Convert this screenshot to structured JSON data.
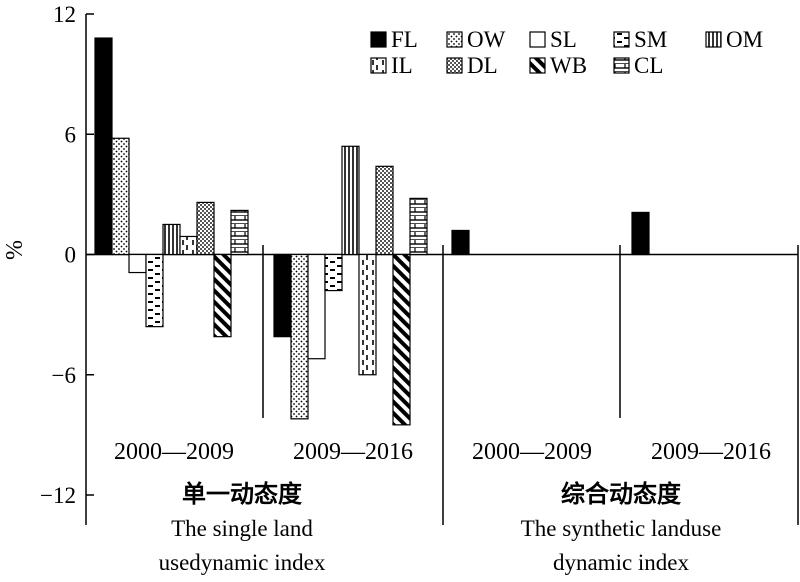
{
  "chart_data": {
    "type": "bar",
    "xlabel": "",
    "ylabel": "%",
    "ylim": [
      -12,
      12
    ],
    "yticks": [
      12,
      6,
      0,
      -6,
      -12
    ],
    "grid": false,
    "legend_position": "top-right",
    "groups": [
      {
        "label": "2000—2009",
        "values": {
          "FL": 10.8,
          "OW": 5.8,
          "SL": -0.9,
          "SM": -3.6,
          "OM": 1.5,
          "IL": 0.9,
          "DL": 2.6,
          "WB": -4.1,
          "CL": 2.2
        }
      },
      {
        "label": "2009—2016",
        "values": {
          "FL": -4.1,
          "OW": -8.2,
          "SL": -5.2,
          "SM": -1.8,
          "OM": 5.4,
          "IL": -6.0,
          "DL": 4.4,
          "WB": -8.5,
          "CL": 2.8
        }
      },
      {
        "label": "2000—2009",
        "values": {
          "FL": 1.2
        }
      },
      {
        "label": "2009—2016",
        "values": {
          "FL": 2.1
        }
      }
    ],
    "sections": [
      {
        "title_cn": "单一动态度",
        "title_en_1": "The single land",
        "title_en_2": "usedynamic index"
      },
      {
        "title_cn": "综合动态度",
        "title_en_1": "The synthetic landuse",
        "title_en_2": "dynamic index"
      }
    ],
    "series": [
      {
        "name": "FL",
        "pattern": "solid"
      },
      {
        "name": "OW",
        "pattern": "dots"
      },
      {
        "name": "SL",
        "pattern": "empty"
      },
      {
        "name": "SM",
        "pattern": "hdash"
      },
      {
        "name": "OM",
        "pattern": "vlines"
      },
      {
        "name": "IL",
        "pattern": "vdash"
      },
      {
        "name": "DL",
        "pattern": "check"
      },
      {
        "name": "WB",
        "pattern": "diag"
      },
      {
        "name": "CL",
        "pattern": "brick"
      }
    ]
  }
}
